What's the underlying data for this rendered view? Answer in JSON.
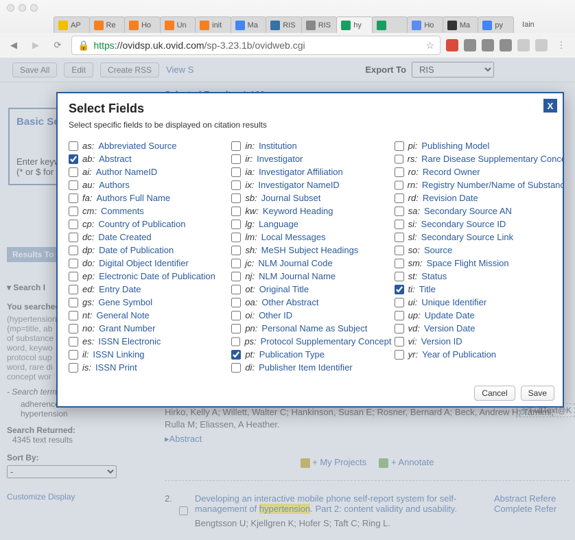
{
  "browser": {
    "traffic_colors": [
      "#ff5f57",
      "#febc2e",
      "#28c840"
    ],
    "user_label": "Iain",
    "tabs": [
      {
        "label": "AP",
        "favicon": "#f0c000"
      },
      {
        "label": "Re",
        "favicon": "#f48024"
      },
      {
        "label": "Ho",
        "favicon": "#f48024"
      },
      {
        "label": "Un",
        "favicon": "#f48024"
      },
      {
        "label": "init",
        "favicon": "#f48024"
      },
      {
        "label": "Ma",
        "favicon": "#4285f4"
      },
      {
        "label": "RIS",
        "favicon": "#3572A5"
      },
      {
        "label": "RIS",
        "favicon": "#888888"
      },
      {
        "label": "hy",
        "favicon": "#1a9e60"
      },
      {
        "label": "",
        "favicon": "#1a9e60"
      },
      {
        "label": "Ho",
        "favicon": "#5b8def"
      },
      {
        "label": "Ma",
        "favicon": "#333333"
      },
      {
        "label": "py",
        "favicon": "#4285f4"
      }
    ],
    "url_https": "https",
    "url_host": "://ovidsp.uk.ovid.com",
    "url_path": "/sp-3.23.1b/ovidweb.cgi",
    "ext_colors": [
      "#d94b3a",
      "#8e8e8e",
      "#8e8e8e",
      "#8e8e8e",
      "#cccccc",
      "#cccccc"
    ]
  },
  "page": {
    "buttons": {
      "save_all": "Save All",
      "edit": "Edit",
      "create_rss": "Create RSS",
      "view_s": "View S"
    },
    "export_to": "Export To",
    "export_format": "RIS",
    "selected_results_label": "Selected Results:",
    "selected_results_range": "1-100",
    "basic_se": "Basic Se",
    "enter_keyw": "Enter keyw",
    "hint": "(* or $ for t",
    "results_to": "Results To",
    "search_i": "Search I",
    "you_searched": "You searched",
    "terms_blurb": "(hypertension\n{mp=title, ab\nof substance\nword, keywo\nprotocol sup\nword, rare di\nconcept wor",
    "search_terms_used": "- Search terms used:",
    "term1": "adherence",
    "term2": "hypertension",
    "search_returned": "Search Returned:",
    "search_count": "4345 text results",
    "sort_by": "Sort By:",
    "sort_val": "-",
    "customize": "Customize Display",
    "authors_line": "Hirko, Kelly A; Willett, Walter C; Hankinson, Susan E; Rosner, Bernard A; Beck, Andrew H; Tamimi, Rulla M; Eliassen, A Heather.",
    "abstract_link": "Abstract",
    "my_projects": "+ My Projects",
    "annotate": "+ Annotate",
    "fulltext": "FullText@K",
    "result2_num": "2.",
    "result2_title_a": "Developing an interactive mobile phone self-report system for self-management of ",
    "result2_hl": "hypertension",
    "result2_title_b": ". Part 2: content validity and usability.",
    "result2_authors": "Bengtsson U; Kjellgren K; Hofer S; Taft C; Ring L.",
    "side_links_a": "Abstract Refere",
    "side_links_b": "Complete Refer"
  },
  "modal": {
    "title": "Select Fields",
    "subtitle": "Select specific fields to be displayed on citation results",
    "close": "X",
    "cancel": "Cancel",
    "save": "Save",
    "cols": [
      [
        {
          "code": "as",
          "label": "Abbreviated Source",
          "checked": false
        },
        {
          "code": "ab",
          "label": "Abstract",
          "checked": true
        },
        {
          "code": "ai",
          "label": "Author NameID",
          "checked": false
        },
        {
          "code": "au",
          "label": "Authors",
          "checked": false
        },
        {
          "code": "fa",
          "label": "Authors Full Name",
          "checked": false
        },
        {
          "code": "cm",
          "label": "Comments",
          "checked": false
        },
        {
          "code": "cp",
          "label": "Country of Publication",
          "checked": false
        },
        {
          "code": "dc",
          "label": "Date Created",
          "checked": false
        },
        {
          "code": "dp",
          "label": "Date of Publication",
          "checked": false
        },
        {
          "code": "do",
          "label": "Digital Object Identifier",
          "checked": false
        },
        {
          "code": "ep",
          "label": "Electronic Date of Publication",
          "checked": false
        },
        {
          "code": "ed",
          "label": "Entry Date",
          "checked": false
        },
        {
          "code": "gs",
          "label": "Gene Symbol",
          "checked": false
        },
        {
          "code": "nt",
          "label": "General Note",
          "checked": false
        },
        {
          "code": "no",
          "label": "Grant Number",
          "checked": false
        },
        {
          "code": "es",
          "label": "ISSN Electronic",
          "checked": false
        },
        {
          "code": "il",
          "label": "ISSN Linking",
          "checked": false
        },
        {
          "code": "is",
          "label": "ISSN Print",
          "checked": false
        }
      ],
      [
        {
          "code": "in",
          "label": "Institution",
          "checked": false
        },
        {
          "code": "ir",
          "label": "Investigator",
          "checked": false
        },
        {
          "code": "ia",
          "label": "Investigator Affiliation",
          "checked": false
        },
        {
          "code": "ix",
          "label": "Investigator NameID",
          "checked": false
        },
        {
          "code": "sb",
          "label": "Journal Subset",
          "checked": false
        },
        {
          "code": "kw",
          "label": "Keyword Heading",
          "checked": false
        },
        {
          "code": "lg",
          "label": "Language",
          "checked": false
        },
        {
          "code": "lm",
          "label": "Local Messages",
          "checked": false
        },
        {
          "code": "sh",
          "label": "MeSH Subject Headings",
          "checked": false
        },
        {
          "code": "jc",
          "label": "NLM Journal Code",
          "checked": false
        },
        {
          "code": "nj",
          "label": "NLM Journal Name",
          "checked": false
        },
        {
          "code": "ot",
          "label": "Original Title",
          "checked": false
        },
        {
          "code": "oa",
          "label": "Other Abstract",
          "checked": false
        },
        {
          "code": "oi",
          "label": "Other ID",
          "checked": false
        },
        {
          "code": "pn",
          "label": "Personal Name as Subject",
          "checked": false
        },
        {
          "code": "ps",
          "label": "Protocol Supplementary Concept",
          "checked": false
        },
        {
          "code": "pt",
          "label": "Publication Type",
          "checked": true
        },
        {
          "code": "di",
          "label": "Publisher Item Identifier",
          "checked": false
        }
      ],
      [
        {
          "code": "pi",
          "label": "Publishing Model",
          "checked": false
        },
        {
          "code": "rs",
          "label": "Rare Disease Supplementary Concept",
          "checked": false
        },
        {
          "code": "ro",
          "label": "Record Owner",
          "checked": false
        },
        {
          "code": "rn",
          "label": "Registry Number/Name of Substance",
          "checked": false
        },
        {
          "code": "rd",
          "label": "Revision Date",
          "checked": false
        },
        {
          "code": "sa",
          "label": "Secondary Source AN",
          "checked": false
        },
        {
          "code": "si",
          "label": "Secondary Source ID",
          "checked": false
        },
        {
          "code": "sl",
          "label": "Secondary Source Link",
          "checked": false
        },
        {
          "code": "so",
          "label": "Source",
          "checked": false
        },
        {
          "code": "sm",
          "label": "Space Flight Mission",
          "checked": false
        },
        {
          "code": "st",
          "label": "Status",
          "checked": false
        },
        {
          "code": "ti",
          "label": "Title",
          "checked": true
        },
        {
          "code": "ui",
          "label": "Unique Identifier",
          "checked": false
        },
        {
          "code": "up",
          "label": "Update Date",
          "checked": false
        },
        {
          "code": "vd",
          "label": "Version Date",
          "checked": false
        },
        {
          "code": "vi",
          "label": "Version ID",
          "checked": false
        },
        {
          "code": "yr",
          "label": "Year of Publication",
          "checked": false
        }
      ]
    ]
  }
}
